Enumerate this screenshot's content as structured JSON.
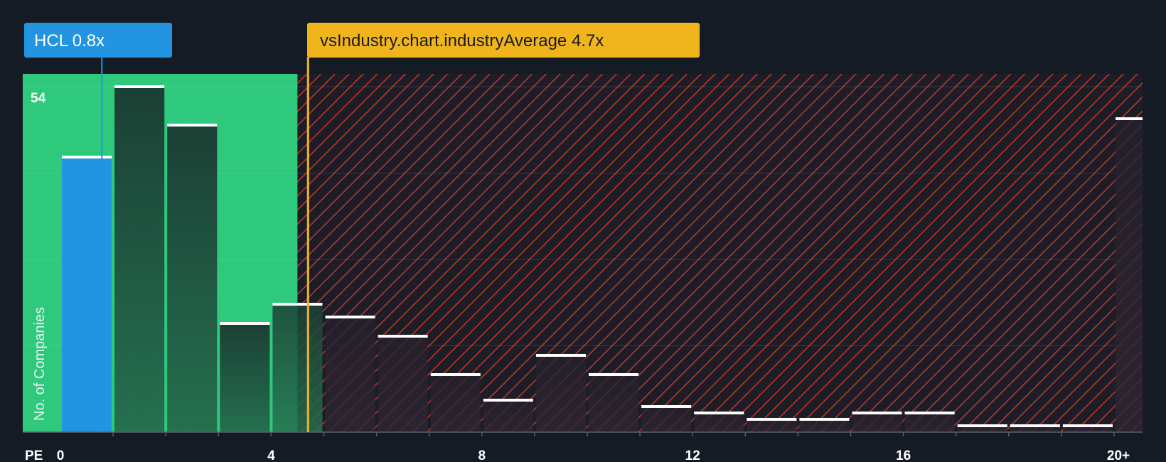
{
  "chart_data": {
    "type": "bar",
    "title": "",
    "xlabel": "PE",
    "ylabel": "No. of Companies",
    "y_max_label": "54",
    "ylim": [
      0,
      54
    ],
    "bins": [
      {
        "x0": 0,
        "x1": 1,
        "value": 43
      },
      {
        "x0": 1,
        "x1": 2,
        "value": 54
      },
      {
        "x0": 2,
        "x1": 3,
        "value": 48
      },
      {
        "x0": 3,
        "x1": 4,
        "value": 17
      },
      {
        "x0": 4,
        "x1": 5,
        "value": 20
      },
      {
        "x0": 5,
        "x1": 6,
        "value": 18
      },
      {
        "x0": 6,
        "x1": 7,
        "value": 15
      },
      {
        "x0": 7,
        "x1": 8,
        "value": 9
      },
      {
        "x0": 8,
        "x1": 9,
        "value": 5
      },
      {
        "x0": 9,
        "x1": 10,
        "value": 12
      },
      {
        "x0": 10,
        "x1": 11,
        "value": 9
      },
      {
        "x0": 11,
        "x1": 12,
        "value": 4
      },
      {
        "x0": 12,
        "x1": 13,
        "value": 3
      },
      {
        "x0": 13,
        "x1": 14,
        "value": 2
      },
      {
        "x0": 14,
        "x1": 15,
        "value": 2
      },
      {
        "x0": 15,
        "x1": 16,
        "value": 3
      },
      {
        "x0": 16,
        "x1": 17,
        "value": 3
      },
      {
        "x0": 17,
        "x1": 18,
        "value": 1
      },
      {
        "x0": 18,
        "x1": 19,
        "value": 1
      },
      {
        "x0": 19,
        "x1": 20,
        "value": 1
      },
      {
        "x0": 20,
        "x1": 20.5,
        "value": 49
      }
    ],
    "x_ticks": [
      {
        "value": 0,
        "label": "0"
      },
      {
        "value": 4,
        "label": "4"
      },
      {
        "value": 8,
        "label": "8"
      },
      {
        "value": 12,
        "label": "12"
      },
      {
        "value": 16,
        "label": "16"
      },
      {
        "value": 20,
        "label": "20+"
      }
    ],
    "company": {
      "ticker": "HCL",
      "value": 0.8,
      "label": "HCL 0.8x",
      "color": "#2394e0"
    },
    "industry": {
      "value": 4.7,
      "label": "vsIndustry.chart.industryAverage 4.7x",
      "color": "#f0b41c"
    },
    "colors": {
      "good_zone": "#2ec97c",
      "bad_zone": "#c0392b",
      "bar_in_zone": "#1f4a3c",
      "bar_out_zone": "#2a2432",
      "bar_cap": "#ffffff",
      "company_bar": "#2394e0"
    }
  }
}
